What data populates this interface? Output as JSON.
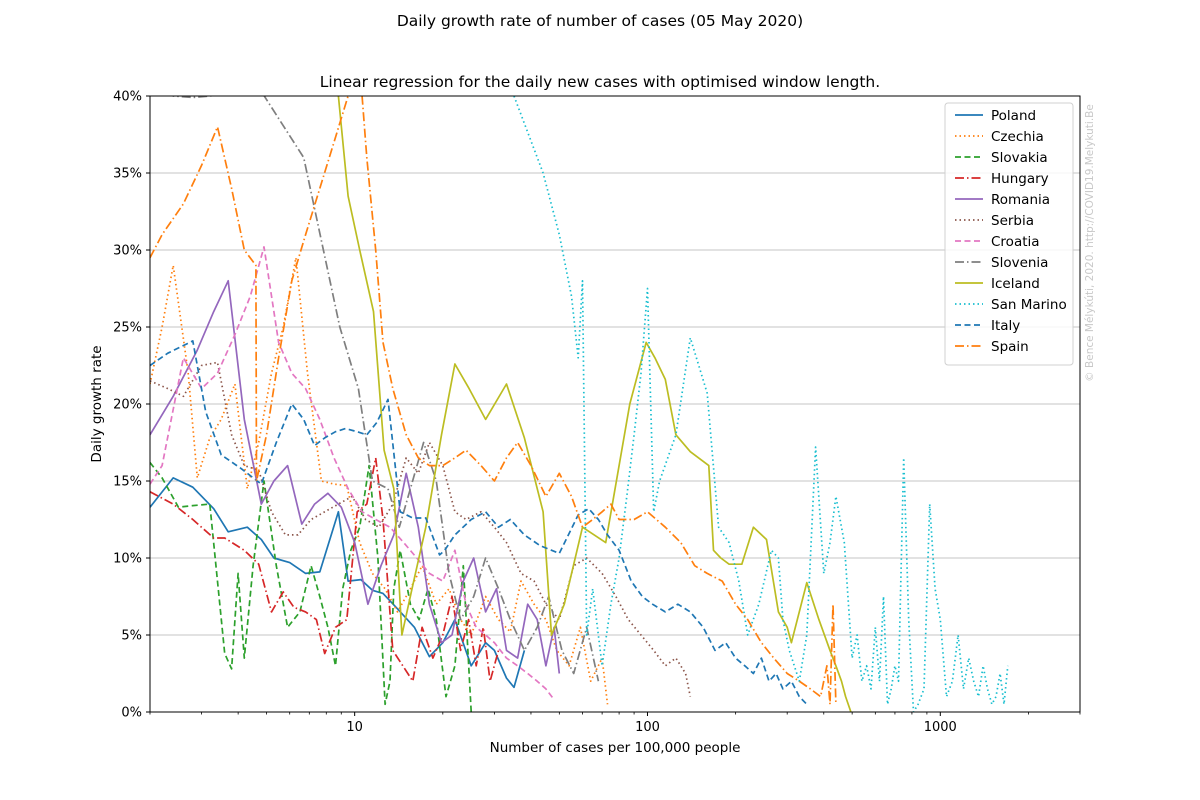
{
  "figure": {
    "title": "Daily growth rate of number of cases (05 May 2020)",
    "subtitle": "Linear regression for the daily new cases with optimised window length.",
    "watermark": "© Bence Mélykúti, 2020. http://COVID19.Melykuti.Be"
  },
  "chart_data": {
    "type": "line",
    "xlabel": "Number of cases per 100,000 people",
    "ylabel": "Daily growth rate",
    "xscale": "log",
    "xlim": [
      2.0,
      3000
    ],
    "ylim": [
      0,
      40
    ],
    "xticks": [
      {
        "value": 10,
        "label": "10"
      },
      {
        "value": 100,
        "label": "100"
      },
      {
        "value": 1000,
        "label": "1000"
      }
    ],
    "yticks": [
      {
        "value": 0,
        "label": "0%"
      },
      {
        "value": 5,
        "label": "5%"
      },
      {
        "value": 10,
        "label": "10%"
      },
      {
        "value": 15,
        "label": "15%"
      },
      {
        "value": 20,
        "label": "20%"
      },
      {
        "value": 25,
        "label": "25%"
      },
      {
        "value": 30,
        "label": "30%"
      },
      {
        "value": 35,
        "label": "35%"
      },
      {
        "value": 40,
        "label": "40%"
      }
    ],
    "grid": "horizontal",
    "legend_position": "top-right",
    "series": [
      {
        "name": "Poland",
        "color": "#1f77b4",
        "dash": "solid",
        "x": [
          2.0,
          2.4,
          2.8,
          3.3,
          3.7,
          4.3,
          4.8,
          5.3,
          6.0,
          6.8,
          7.6,
          8.8,
          9.5,
          10.5,
          11.5,
          12.5,
          14,
          16,
          18,
          20,
          22,
          25,
          28,
          30,
          33,
          35,
          38
        ],
        "y": [
          13.3,
          15.2,
          14.6,
          13.2,
          11.7,
          12.0,
          11.2,
          10.0,
          9.7,
          9.0,
          9.1,
          13.0,
          8.5,
          8.6,
          7.9,
          7.7,
          6.7,
          5.5,
          3.6,
          4.5,
          6.0,
          3.0,
          4.5,
          4.0,
          2.2,
          1.6,
          4.0
        ]
      },
      {
        "name": "Czechia",
        "color": "#ff7f0e",
        "dash": "dotted",
        "x": [
          2.0,
          2.2,
          2.4,
          2.7,
          2.9,
          3.2,
          3.5,
          3.9,
          4.3,
          4.7,
          5.2,
          5.7,
          6.3,
          6.9,
          7.7,
          8.5,
          9.4,
          10.4,
          11.5,
          12.7,
          14.0,
          15.5,
          17.0,
          19.0,
          21,
          23,
          25,
          28,
          31,
          34,
          37,
          41,
          45,
          49,
          54,
          59,
          64,
          70,
          73
        ],
        "y": [
          21.3,
          25.0,
          29.0,
          22.0,
          15.2,
          17.8,
          19.0,
          21.3,
          14.5,
          17.5,
          22.0,
          25.0,
          29.5,
          22.0,
          15.0,
          14.8,
          14.7,
          11.0,
          9.0,
          8.0,
          6.5,
          8.0,
          9.5,
          7.0,
          8.0,
          6.0,
          5.0,
          7.5,
          6.0,
          5.2,
          8.5,
          7.0,
          6.0,
          4.0,
          3.0,
          5.5,
          2.0,
          3.5,
          0.5
        ]
      },
      {
        "name": "Slovakia",
        "color": "#2ca02c",
        "dash": "dashed",
        "x": [
          2.0,
          2.2,
          2.5,
          2.8,
          3.2,
          3.6,
          3.8,
          4.0,
          4.2,
          4.5,
          4.9,
          5.4,
          5.9,
          6.5,
          7.1,
          7.6,
          8.1,
          8.6,
          9.1,
          9.7,
          10.4,
          11.2,
          12.0,
          12.7,
          13.2,
          13.6,
          14.3,
          15.5,
          16.6,
          17.8,
          19,
          20.5,
          22,
          23.5,
          25
        ],
        "y": [
          16.2,
          15.2,
          13.3,
          13.4,
          13.5,
          3.8,
          2.8,
          9.0,
          3.5,
          9.5,
          15.0,
          9.5,
          5.5,
          6.5,
          9.5,
          7.5,
          5.5,
          3.0,
          8.0,
          10.5,
          12.0,
          16.0,
          10.0,
          0.5,
          2.0,
          8.0,
          10.5,
          7.0,
          6.0,
          8.0,
          6.0,
          1.0,
          3.0,
          9.5,
          0.0
        ]
      },
      {
        "name": "Hungary",
        "color": "#d62728",
        "dash": "dashdot",
        "x": [
          2.0,
          2.4,
          2.8,
          3.3,
          3.6,
          4.2,
          4.7,
          5.2,
          5.7,
          6.2,
          6.8,
          7.4,
          7.9,
          8.6,
          9.4,
          10.2,
          11.0,
          11.8,
          12.5,
          13.5,
          14.6,
          15.8,
          17,
          18.5,
          20,
          21.5,
          23,
          24.5,
          26,
          27.5,
          29,
          31
        ],
        "y": [
          14.3,
          13.5,
          12.5,
          11.3,
          11.3,
          10.5,
          9.6,
          6.5,
          7.8,
          6.8,
          6.5,
          6.0,
          3.8,
          5.5,
          6.0,
          13.0,
          13.5,
          16.5,
          12.5,
          4.0,
          3.0,
          2.0,
          5.5,
          3.5,
          5.0,
          7.5,
          4.0,
          6.0,
          3.0,
          5.5,
          2.0,
          4.0
        ]
      },
      {
        "name": "Romania",
        "color": "#9467bd",
        "dash": "solid",
        "x": [
          2.0,
          2.4,
          2.9,
          3.3,
          3.7,
          4.2,
          4.8,
          5.3,
          5.9,
          6.6,
          7.3,
          8.1,
          9.0,
          10.0,
          11.1,
          12.3,
          13.6,
          15.0,
          16.5,
          18,
          19.8,
          21.5,
          23.5,
          25.5,
          28,
          30.5,
          33,
          36,
          39,
          42,
          45,
          48,
          50
        ],
        "y": [
          18.0,
          20.5,
          23.5,
          26.0,
          28.0,
          19.0,
          13.5,
          15.0,
          16.0,
          12.2,
          13.5,
          14.2,
          13.3,
          11.0,
          7.0,
          9.5,
          11.5,
          15.5,
          12.0,
          7.0,
          4.5,
          5.0,
          8.5,
          10.0,
          6.5,
          8.0,
          4.0,
          3.5,
          7.0,
          6.0,
          3.0,
          5.5,
          2.5
        ]
      },
      {
        "name": "Serbia",
        "color": "#8c564b",
        "dash": "dotted",
        "x": [
          2.0,
          2.3,
          2.6,
          3.0,
          3.4,
          3.8,
          4.2,
          4.7,
          5.2,
          5.8,
          6.4,
          7.1,
          7.9,
          8.8,
          9.8,
          10.9,
          12.1,
          13.5,
          15.0,
          16.5,
          18,
          20,
          22,
          24,
          27,
          30,
          33,
          37,
          41,
          45,
          50,
          56,
          62,
          70,
          78,
          86,
          95,
          105,
          115,
          125,
          135,
          140
        ],
        "y": [
          21.5,
          21.0,
          20.5,
          22.5,
          22.7,
          18.0,
          16.0,
          15.7,
          13.0,
          11.5,
          11.5,
          12.5,
          13.0,
          13.5,
          14.0,
          12.5,
          12.0,
          13.5,
          16.5,
          15.5,
          17.5,
          16.0,
          13.0,
          12.5,
          13.0,
          12.0,
          11.0,
          9.0,
          8.5,
          7.0,
          6.0,
          9.5,
          10.0,
          9.0,
          7.5,
          6.0,
          5.0,
          4.0,
          3.0,
          3.5,
          2.5,
          1.0
        ]
      },
      {
        "name": "Croatia",
        "color": "#e377c2",
        "dash": "dashed",
        "x": [
          2.0,
          2.2,
          2.6,
          3.0,
          3.4,
          3.9,
          4.4,
          4.9,
          5.5,
          6.1,
          6.8,
          7.6,
          8.5,
          9.5,
          10.6,
          11.8,
          13.2,
          14.7,
          16.3,
          18,
          20,
          22,
          24,
          26,
          28,
          30,
          33,
          36,
          39,
          42,
          45,
          48
        ],
        "y": [
          14.8,
          16.0,
          23.0,
          21.0,
          22.0,
          24.5,
          27.0,
          30.2,
          24.0,
          22.0,
          21.0,
          19.0,
          16.5,
          14.5,
          13.0,
          12.5,
          12.0,
          11.0,
          10.0,
          9.0,
          8.5,
          10.5,
          7.0,
          5.5,
          5.0,
          4.5,
          3.5,
          3.0,
          2.5,
          2.0,
          1.5,
          0.8
        ]
      },
      {
        "name": "Slovenia",
        "color": "#7f7f7f",
        "dash": "dashdot",
        "x": [
          2.0,
          2.4,
          2.8,
          4.8,
          6.7,
          8.9,
          10.3,
          11.5,
          13.0,
          14.2,
          15.5,
          17.2,
          19,
          21,
          23,
          25.5,
          28,
          31,
          34,
          38,
          42,
          46,
          51,
          56,
          62,
          68
        ],
        "y": [
          40.5,
          40.0,
          39.9,
          40.3,
          36.0,
          25.0,
          21.0,
          15.0,
          14.5,
          12.0,
          14.5,
          17.5,
          15.0,
          9.0,
          6.0,
          7.5,
          10.0,
          8.0,
          6.0,
          4.0,
          5.5,
          7.5,
          4.0,
          2.5,
          5.5,
          2.0
        ]
      },
      {
        "name": "Iceland",
        "color": "#bcbd22",
        "dash": "solid",
        "x": [
          8.8,
          9.5,
          10.4,
          11.6,
          12.6,
          13.6,
          14.5,
          15.7,
          17.5,
          19.8,
          22.0,
          24.6,
          28.0,
          33.0,
          38.0,
          44.0,
          47.0,
          52,
          60,
          72,
          87,
          99,
          106,
          115,
          125,
          140,
          162,
          168,
          178,
          190,
          210,
          230,
          255,
          280,
          300,
          310,
          350,
          385,
          420,
          440,
          460,
          475,
          495
        ],
        "y": [
          40.0,
          33.5,
          30.0,
          26.0,
          17.0,
          14.5,
          5.0,
          8.0,
          12.0,
          18.0,
          22.6,
          21.0,
          19.0,
          21.3,
          17.8,
          13.0,
          5.0,
          7.0,
          12.0,
          11.0,
          20.0,
          24.0,
          23.0,
          21.6,
          18.0,
          16.9,
          16.0,
          10.5,
          10.0,
          9.6,
          9.6,
          12.0,
          11.2,
          6.5,
          5.5,
          4.5,
          8.4,
          6.0,
          4.0,
          3.0,
          2.0,
          1.0,
          0.0
        ]
      },
      {
        "name": "San Marino",
        "color": "#17becf",
        "dash": "dotted",
        "x": [
          35,
          44,
          50,
          55,
          58,
          60,
          62,
          65,
          70,
          75,
          80,
          85,
          90,
          95,
          100,
          105,
          110,
          125,
          140,
          160,
          175,
          190,
          205,
          220,
          240,
          265,
          280,
          290,
          305,
          330,
          350,
          375,
          400,
          420,
          440,
          470,
          500,
          520,
          540,
          560,
          580,
          600,
          620,
          640,
          660,
          680,
          700,
          720,
          750,
          780,
          810,
          840,
          880,
          920,
          960,
          1000,
          1050,
          1100,
          1150,
          1200,
          1250,
          1300,
          1350,
          1400,
          1450,
          1500,
          1550,
          1600,
          1650,
          1700
        ],
        "y": [
          40.0,
          35.0,
          31.0,
          27.0,
          23.0,
          28.0,
          5.0,
          8.0,
          3.0,
          7.0,
          10.0,
          14.0,
          18.0,
          22.0,
          27.5,
          13.0,
          15.0,
          18.0,
          24.3,
          20.7,
          12.0,
          11.0,
          8.5,
          5.0,
          7.0,
          10.5,
          10.0,
          6.0,
          4.0,
          2.0,
          5.0,
          17.2,
          9.0,
          11.0,
          14.0,
          11.0,
          3.5,
          5.0,
          2.0,
          3.0,
          1.5,
          5.5,
          2.0,
          7.5,
          0.5,
          1.5,
          3.0,
          2.0,
          16.5,
          6.0,
          0.0,
          0.5,
          1.5,
          13.5,
          8.0,
          6.0,
          1.0,
          2.0,
          5.0,
          1.5,
          3.5,
          2.0,
          1.0,
          3.0,
          1.5,
          0.5,
          1.0,
          2.5,
          0.5,
          3.0
        ]
      },
      {
        "name": "Italy",
        "color": "#1f77b4",
        "dash": "dashed",
        "x": [
          2.0,
          2.3,
          2.8,
          3.1,
          3.5,
          4.1,
          4.8,
          5.4,
          6.1,
          6.7,
          7.3,
          7.9,
          8.6,
          9.3,
          10.2,
          11.0,
          11.9,
          13.0,
          14.3,
          15.8,
          17.5,
          19.5,
          20.3,
          22,
          25,
          28,
          31,
          34,
          38,
          43,
          50,
          58,
          63,
          68,
          73,
          80,
          88,
          96,
          104,
          115,
          127,
          140,
          155,
          170,
          185,
          200,
          215,
          230,
          245,
          260,
          275,
          290,
          310,
          330,
          350
        ],
        "y": [
          22.5,
          23.3,
          24.1,
          19.5,
          16.7,
          15.8,
          14.8,
          17.5,
          20.0,
          19.0,
          17.3,
          17.8,
          18.2,
          18.4,
          18.2,
          18.0,
          18.8,
          20.3,
          13.0,
          12.6,
          12.6,
          10.2,
          10.5,
          11.5,
          12.5,
          13.0,
          12.0,
          12.5,
          11.5,
          10.8,
          10.3,
          12.8,
          13.2,
          12.5,
          11.5,
          10.5,
          8.5,
          7.5,
          7.0,
          6.5,
          7.0,
          6.5,
          5.5,
          4.0,
          4.5,
          3.5,
          3.0,
          2.5,
          3.5,
          2.0,
          2.5,
          1.5,
          2.0,
          1.0,
          0.5
        ]
      },
      {
        "name": "Spain",
        "color": "#ff7f0e",
        "dash": "dashdot",
        "x": [
          2.0,
          2.2,
          2.6,
          3.0,
          3.4,
          3.8,
          4.2,
          4.6,
          4.62,
          5.0,
          5.5,
          6.1,
          6.8,
          7.6,
          8.5,
          9.5,
          10.5,
          11.0,
          11.8,
          12.5,
          13.5,
          15.0,
          16.5,
          18,
          20,
          22,
          24,
          27,
          30,
          33,
          36,
          40,
          45,
          50,
          55,
          60,
          65,
          70,
          75,
          80,
          90,
          100,
          115,
          130,
          145,
          160,
          180,
          200,
          220,
          245,
          270,
          300,
          330,
          360,
          390,
          410,
          420,
          430,
          440
        ],
        "y": [
          29.5,
          31.0,
          33.0,
          35.5,
          38.0,
          34.0,
          30.0,
          29.0,
          15.0,
          18.0,
          23.0,
          28.0,
          31.0,
          34.0,
          37.0,
          40.0,
          41.0,
          36.0,
          30.0,
          24.0,
          21.0,
          18.0,
          16.5,
          16.0,
          16.0,
          16.5,
          17.0,
          16.0,
          15.0,
          16.5,
          17.5,
          16.0,
          14.0,
          15.5,
          14.0,
          12.0,
          12.5,
          13.0,
          13.5,
          12.5,
          12.5,
          13.0,
          12.0,
          11.0,
          9.5,
          9.0,
          8.5,
          7.0,
          6.0,
          4.5,
          3.5,
          2.5,
          2.0,
          1.5,
          1.0,
          3.0,
          0.5,
          7.0,
          0.5
        ]
      }
    ]
  }
}
